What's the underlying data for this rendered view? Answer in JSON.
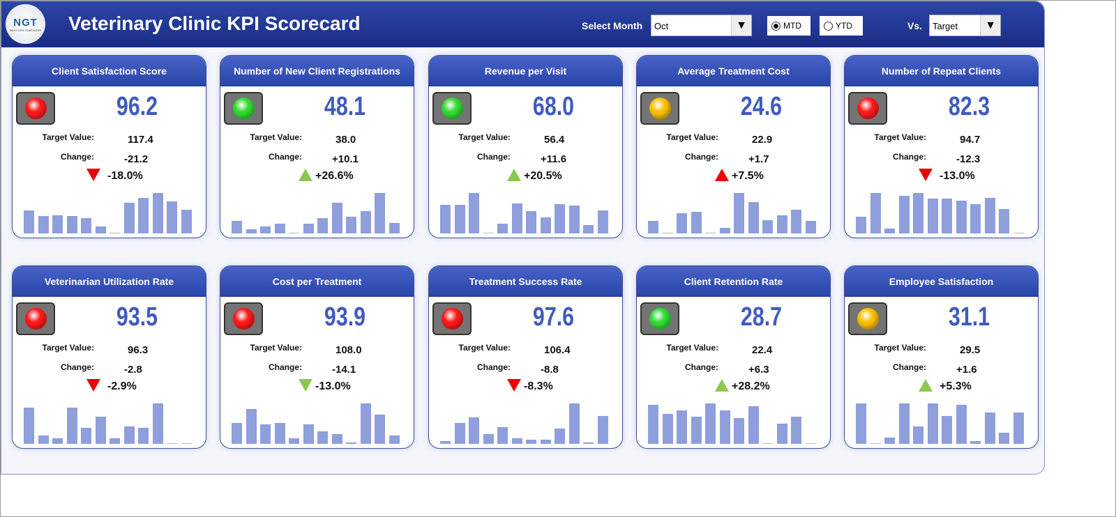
{
  "header": {
    "logo_text": "NGT",
    "logo_sub": "NEXT GEN TEMPLATES",
    "title": "Veterinary Clinic KPI Scorecard",
    "select_month_label": "Select Month",
    "month": "Oct",
    "mtd": "MTD",
    "ytd": "YTD",
    "selected_period": "MTD",
    "vs_label": "Vs.",
    "vs_value": "Target",
    "dropdown_icon": "triangle-down"
  },
  "labels": {
    "target": "Target Value:",
    "change": "Change:"
  },
  "colors": {
    "red": "#ff1a1a",
    "green": "#33dd33",
    "yellow": "#ffc000",
    "up_good": "#8cc850",
    "down_bad": "#ee0000",
    "bar": "#8e9fdc"
  },
  "cards": [
    {
      "title": "Client Satisfaction Score",
      "value": "96.2",
      "target": "117.4",
      "change": "-21.2",
      "pct": "-18.0%",
      "light": "red",
      "arrow": "down",
      "arrow_color": "red",
      "spark": [
        32,
        25,
        26,
        25,
        22,
        10,
        1,
        43,
        50,
        57,
        45,
        33
      ]
    },
    {
      "title": "Number of New Client Registrations",
      "value": "48.1",
      "target": "38.0",
      "change": "+10.1",
      "pct": "+26.6%",
      "light": "green",
      "arrow": "up",
      "arrow_color": "green",
      "spark": [
        18,
        6,
        10,
        14,
        1,
        14,
        22,
        44,
        24,
        32,
        58,
        15
      ]
    },
    {
      "title": "Revenue per Visit",
      "value": "68.0",
      "target": "56.4",
      "change": "+11.6",
      "pct": "+20.5%",
      "light": "green",
      "arrow": "up",
      "arrow_color": "green",
      "spark": [
        42,
        42,
        60,
        1,
        14,
        45,
        33,
        24,
        43,
        41,
        12,
        34
      ]
    },
    {
      "title": "Average Treatment Cost",
      "value": "24.6",
      "target": "22.9",
      "change": "+1.7",
      "pct": "+7.5%",
      "light": "yellow",
      "arrow": "up",
      "arrow_color": "red",
      "spark": [
        18,
        1,
        29,
        30,
        1,
        8,
        57,
        44,
        19,
        26,
        33,
        18
      ]
    },
    {
      "title": "Number of Repeat Clients",
      "value": "82.3",
      "target": "94.7",
      "change": "-12.3",
      "pct": "-13.0%",
      "light": "red",
      "arrow": "down",
      "arrow_color": "red",
      "spark": [
        22,
        53,
        6,
        49,
        53,
        46,
        46,
        43,
        38,
        47,
        32,
        1
      ]
    },
    {
      "title": "Veterinarian Utilization Rate",
      "value": "93.5",
      "target": "96.3",
      "change": "-2.8",
      "pct": "-2.9%",
      "light": "red",
      "arrow": "down",
      "arrow_color": "red",
      "spark": [
        50,
        12,
        8,
        50,
        22,
        38,
        8,
        24,
        22,
        56,
        1,
        1
      ]
    },
    {
      "title": "Cost per Treatment",
      "value": "93.9",
      "target": "108.0",
      "change": "-14.1",
      "pct": "-13.0%",
      "light": "red",
      "arrow": "down",
      "arrow_color": "green",
      "spark": [
        30,
        50,
        28,
        30,
        8,
        28,
        18,
        14,
        2,
        58,
        42,
        12
      ]
    },
    {
      "title": "Treatment Success Rate",
      "value": "97.6",
      "target": "106.4",
      "change": "-8.8",
      "pct": "-8.3%",
      "light": "red",
      "arrow": "down",
      "arrow_color": "red",
      "spark": [
        4,
        30,
        38,
        14,
        24,
        8,
        6,
        6,
        22,
        58,
        2,
        40
      ]
    },
    {
      "title": "Client Retention Rate",
      "value": "28.7",
      "target": "22.4",
      "change": "+6.3",
      "pct": "+28.2%",
      "light": "green",
      "arrow": "up",
      "arrow_color": "green",
      "spark": [
        54,
        42,
        46,
        38,
        56,
        46,
        36,
        52,
        1,
        28,
        38,
        1
      ]
    },
    {
      "title": "Employee Satisfaction",
      "value": "31.1",
      "target": "29.5",
      "change": "+1.6",
      "pct": "+5.3%",
      "light": "yellow",
      "arrow": "up",
      "arrow_color": "green",
      "spark": [
        52,
        1,
        8,
        52,
        22,
        52,
        36,
        50,
        4,
        40,
        14,
        40
      ]
    }
  ]
}
